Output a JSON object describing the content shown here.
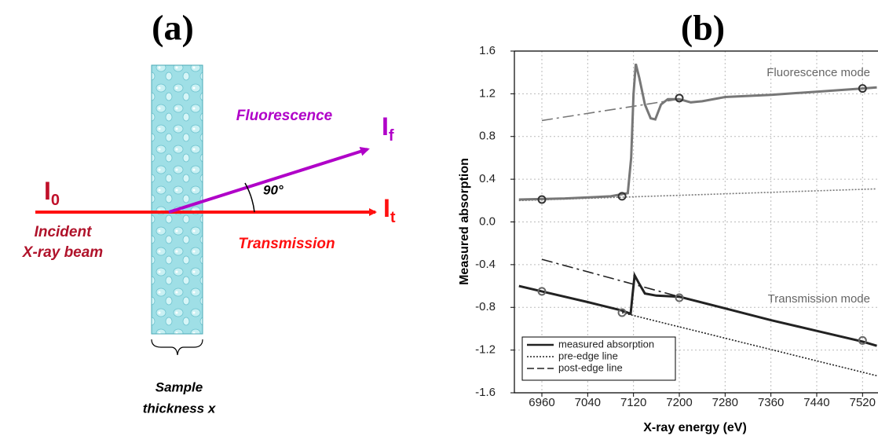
{
  "diagram": {
    "title": "(a)",
    "beams": [
      {
        "symbol": "I",
        "subscript": "0",
        "label": [
          "Incident",
          "X-ray beam"
        ]
      },
      {
        "symbol": "I",
        "subscript": "t",
        "label": [
          "Transmission"
        ]
      },
      {
        "symbol": "I",
        "subscript": "f",
        "label": [
          "Fluorescence"
        ]
      }
    ],
    "angle": "90°",
    "sample": [
      "Sample",
      "thickness x"
    ]
  },
  "chart_data": {
    "type": "line",
    "title": "(b)",
    "x_label": "X-ray energy (eV)",
    "y_label": "Measured absorption",
    "xlim": [
      6912,
      7547
    ],
    "ylim": [
      -1.6,
      1.6
    ],
    "xticks": [
      6960,
      7040,
      7120,
      7200,
      7280,
      7360,
      7440,
      7520
    ],
    "yticks": [
      1.6,
      1.2,
      0.8,
      0.4,
      {
        "value": 0,
        "label": "0.0"
      },
      -0.4,
      -0.8,
      -1.2,
      -1.6
    ],
    "grid": true,
    "legend": "lower left",
    "annotations": [
      "Fluorescence mode",
      "Transmission mode"
    ],
    "series": [
      {
        "name": "measured absorption",
        "color": "#222222",
        "style": "solid",
        "x": [
          6920,
          6960,
          7040,
          7100,
          7115,
          7118,
          7122,
          7130,
          7140,
          7160,
          7200,
          7280,
          7360,
          7440,
          7520,
          7545
        ],
        "values": [
          -0.6,
          -0.65,
          -0.75,
          -0.83,
          -0.86,
          -0.7,
          -0.5,
          -0.58,
          -0.67,
          -0.69,
          -0.7,
          -0.81,
          -0.92,
          -1.02,
          -1.12,
          -1.16
        ]
      },
      {
        "name": "pre-edge line",
        "color": "#222222",
        "style": "dotted",
        "x": [
          7100,
          7545
        ],
        "values": [
          -0.85,
          -1.44
        ]
      },
      {
        "name": "post-edge line",
        "color": "#222222",
        "style": "dashed",
        "x": [
          6960,
          7200
        ],
        "values": [
          -0.35,
          -0.7
        ]
      },
      {
        "color": "#777777",
        "style": "solid",
        "x": [
          6920,
          7000,
          7080,
          7110,
          7116,
          7120,
          7124,
          7130,
          7140,
          7150,
          7158,
          7168,
          7180,
          7200,
          7220,
          7240,
          7280,
          7360,
          7440,
          7520,
          7545
        ],
        "values": [
          0.21,
          0.22,
          0.24,
          0.27,
          0.6,
          1.2,
          1.48,
          1.35,
          1.1,
          0.97,
          0.96,
          1.1,
          1.15,
          1.15,
          1.12,
          1.13,
          1.17,
          1.19,
          1.22,
          1.25,
          1.26
        ]
      },
      {
        "color": "#777777",
        "style": "dotted",
        "x": [
          6920,
          7545
        ],
        "values": [
          0.2,
          0.31
        ]
      },
      {
        "color": "#777777",
        "style": "dashed",
        "x": [
          6960,
          7200
        ],
        "values": [
          0.95,
          1.15
        ]
      },
      {
        "color": "#333333",
        "style": "markers",
        "x": [
          6960,
          7100,
          7200,
          7520
        ],
        "values": [
          0.21,
          0.24,
          1.16,
          1.25
        ]
      },
      {
        "color": "#666666",
        "style": "markers",
        "x": [
          6960,
          7100,
          7200,
          7520
        ],
        "values": [
          -0.65,
          -0.85,
          -0.71,
          -1.11
        ]
      }
    ]
  }
}
